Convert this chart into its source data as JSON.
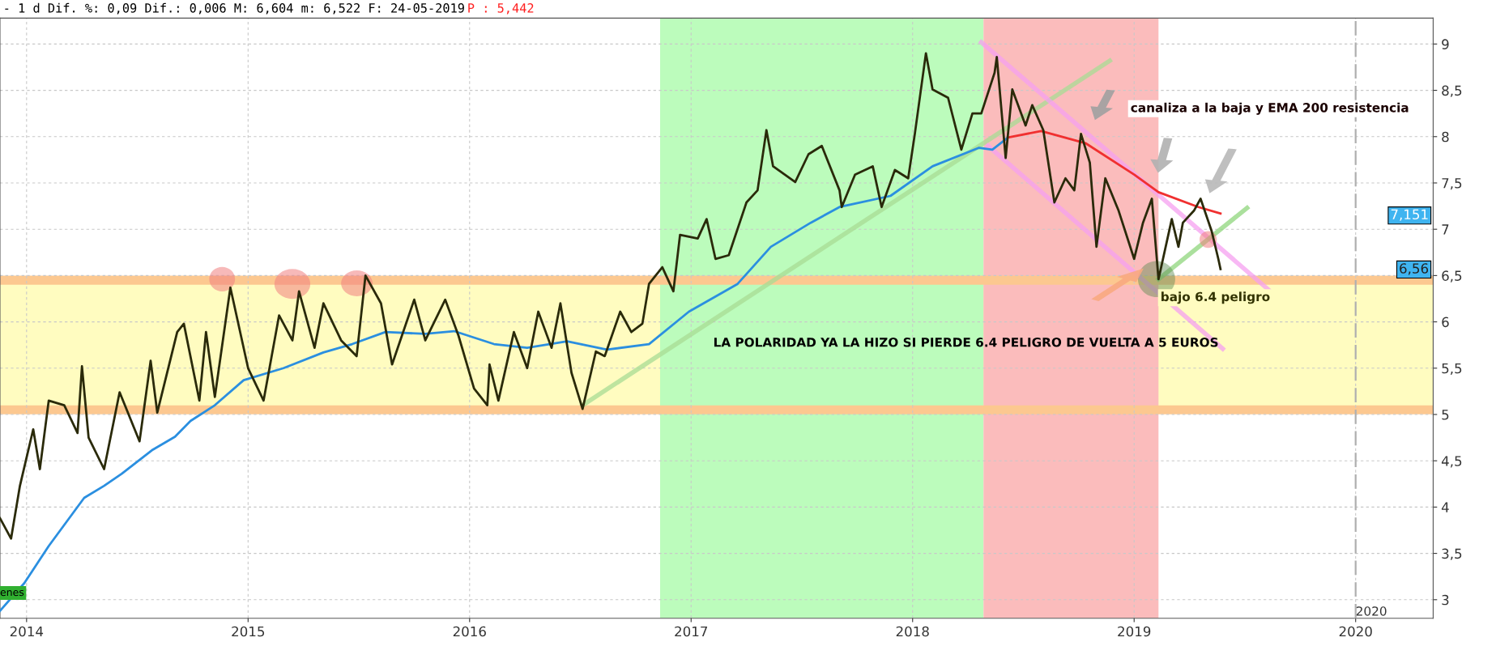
{
  "chart_data": {
    "type": "line",
    "xlim": [
      2013.88,
      2020.35
    ],
    "ylim": [
      2.8,
      9.28
    ],
    "xticks": [
      {
        "value": 2014,
        "label": "2014"
      },
      {
        "value": 2015,
        "label": "2015"
      },
      {
        "value": 2016,
        "label": "2016"
      },
      {
        "value": 2017,
        "label": "2017"
      },
      {
        "value": 2018,
        "label": "2018"
      },
      {
        "value": 2019,
        "label": "2019"
      },
      {
        "value": 2020,
        "label": "2020"
      }
    ],
    "yticks": [
      3,
      {
        "value": 3.5,
        "label": "3,5"
      },
      4,
      {
        "value": 4.5,
        "label": "4,5"
      },
      5,
      {
        "value": 5.5,
        "label": "5,5"
      },
      6,
      {
        "value": 6.5,
        "label": "6,5"
      },
      7,
      {
        "value": 7.5,
        "label": "7,5"
      },
      8,
      {
        "value": 8.5,
        "label": "8,5"
      },
      9
    ],
    "grid": true,
    "legend": false,
    "marker": "none",
    "line_style": "solid",
    "series": [
      {
        "type": "line",
        "color": "#a8dc94",
        "x": [
          2016.51,
          2018.89
        ],
        "values": [
          5.1,
          8.82
        ]
      },
      {
        "type": "line",
        "color": "#f5a0f0",
        "x": [
          2018.31,
          2019.61
        ],
        "values": [
          9.02,
          6.34
        ]
      },
      {
        "type": "line",
        "color": "#f5a0f0",
        "x": [
          2018.34,
          2019.4
        ],
        "values": [
          7.9,
          5.71
        ]
      },
      {
        "type": "line",
        "color": "#8fd67c",
        "x": [
          2019.11,
          2019.51
        ],
        "values": [
          6.46,
          7.23
        ]
      },
      {
        "type": "line",
        "color": "#2b8fe0",
        "x": [
          2013.88,
          2013.99,
          2014.1,
          2014.26,
          2014.35,
          2014.43,
          2014.57,
          2014.67,
          2014.74,
          2014.85,
          2014.98,
          2015.16,
          2015.34,
          2015.47,
          2015.62,
          2015.8,
          2015.93,
          2016.11,
          2016.26,
          2016.44,
          2016.62,
          2016.81,
          2016.99,
          2017.21,
          2017.36,
          2017.54,
          2017.67,
          2017.9,
          2018.09,
          2018.3,
          2018.36,
          2018.43
        ],
        "values": [
          2.88,
          3.18,
          3.58,
          4.1,
          4.23,
          4.36,
          4.62,
          4.76,
          4.93,
          5.1,
          5.37,
          5.5,
          5.67,
          5.76,
          5.89,
          5.87,
          5.9,
          5.76,
          5.72,
          5.79,
          5.7,
          5.76,
          6.11,
          6.41,
          6.81,
          7.07,
          7.24,
          7.36,
          7.68,
          7.88,
          7.86,
          7.99
        ]
      },
      {
        "type": "line",
        "color": "#f03030",
        "x": [
          2018.43,
          2018.58,
          2018.78,
          2019.0,
          2019.11,
          2019.29,
          2019.39
        ],
        "values": [
          7.99,
          8.06,
          7.93,
          7.59,
          7.4,
          7.24,
          7.17
        ]
      },
      {
        "color": "#2a2a0a",
        "x": [
          2013.88,
          2013.93,
          2013.97,
          2014.03,
          2014.06,
          2014.1,
          2014.17,
          2014.23,
          2014.25,
          2014.28,
          2014.35,
          2014.42,
          2014.51,
          2014.56,
          2014.59,
          2014.68,
          2014.71,
          2014.78,
          2014.81,
          2014.85,
          2014.92,
          2015.0,
          2015.07,
          2015.14,
          2015.2,
          2015.23,
          2015.3,
          2015.34,
          2015.42,
          2015.49,
          2015.53,
          2015.6,
          2015.65,
          2015.75,
          2015.8,
          2015.89,
          2015.95,
          2016.02,
          2016.08,
          2016.09,
          2016.13,
          2016.2,
          2016.26,
          2016.31,
          2016.37,
          2016.41,
          2016.46,
          2016.51,
          2016.57,
          2016.61,
          2016.68,
          2016.73,
          2016.78,
          2016.81,
          2016.87,
          2016.92,
          2016.95,
          2017.03,
          2017.07,
          2017.11,
          2017.17,
          2017.25,
          2017.3,
          2017.34,
          2017.37,
          2017.47,
          2017.53,
          2017.59,
          2017.67,
          2017.68,
          2017.74,
          2017.82,
          2017.86,
          2017.92,
          2017.98,
          2018.01,
          2018.06,
          2018.09,
          2018.16,
          2018.22,
          2018.27,
          2018.31,
          2018.37,
          2018.38,
          2018.42,
          2018.45,
          2018.51,
          2018.54,
          2018.59,
          2018.64,
          2018.69,
          2018.73,
          2018.76,
          2018.8,
          2018.83,
          2018.87,
          2018.93,
          2019.0,
          2019.04,
          2019.08,
          2019.11,
          2019.17,
          2019.2,
          2019.22,
          2019.27,
          2019.3,
          2019.35,
          2019.38,
          2019.39
        ],
        "values": [
          3.88,
          3.66,
          4.23,
          4.84,
          4.41,
          5.15,
          5.1,
          4.8,
          5.52,
          4.75,
          4.41,
          5.24,
          4.71,
          5.58,
          5.02,
          5.89,
          5.98,
          5.15,
          5.89,
          5.19,
          6.37,
          5.5,
          5.15,
          6.07,
          5.8,
          6.33,
          5.72,
          6.2,
          5.8,
          5.63,
          6.5,
          6.2,
          5.54,
          6.24,
          5.8,
          6.24,
          5.85,
          5.28,
          5.1,
          5.54,
          5.15,
          5.89,
          5.5,
          6.11,
          5.72,
          6.2,
          5.45,
          5.06,
          5.68,
          5.63,
          6.11,
          5.89,
          5.98,
          6.41,
          6.59,
          6.33,
          6.94,
          6.9,
          7.11,
          6.68,
          6.72,
          7.29,
          7.42,
          8.07,
          7.68,
          7.51,
          7.81,
          7.9,
          7.42,
          7.24,
          7.59,
          7.68,
          7.24,
          7.64,
          7.55,
          8.03,
          8.9,
          8.51,
          8.42,
          7.86,
          8.25,
          8.25,
          8.69,
          8.86,
          7.77,
          8.51,
          8.12,
          8.34,
          8.07,
          7.29,
          7.55,
          7.42,
          8.03,
          7.72,
          6.81,
          7.55,
          7.2,
          6.68,
          7.07,
          7.33,
          6.46,
          7.11,
          6.81,
          7.07,
          7.2,
          7.33,
          6.98,
          6.68,
          6.57
        ]
      }
    ],
    "bands": [
      {
        "axis": "y",
        "from": 5.02,
        "to": 6.45,
        "label": null,
        "color": "#fffcc0"
      },
      {
        "axis": "x",
        "from": 2016.86,
        "to": 2018.32,
        "label": null,
        "color": "#bcfcbc"
      },
      {
        "axis": "x",
        "from": 2018.32,
        "to": 2019.11,
        "label": null,
        "color": "#fbbcbc"
      }
    ],
    "ref_lines": [
      {
        "axis": "y",
        "value": 6.45,
        "label": null,
        "color": "#fcc890",
        "line_style": "solid"
      },
      {
        "axis": "y",
        "value": 5.05,
        "label": null,
        "color": "#fcc890",
        "line_style": "solid"
      },
      {
        "axis": "x",
        "value": 2020,
        "label": "2020",
        "color": "#b0b0b0",
        "line_style": "dashed"
      }
    ],
    "annotations": [
      "- 1 d Dif. %: 0,09 Dif.: 0,006 M: 6,604 m: 6,522 F: 24-05-2019",
      "P : 5,442",
      "canaliza a la baja y EMA 200 resistencia",
      "LA POLARIDAD YA LA HIZO SI PIERDE 6.4 PELIGRO DE VUELTA A 5 EUROS",
      "bajo 6.4 peligro",
      "enes",
      "7,151",
      "6,56"
    ]
  }
}
